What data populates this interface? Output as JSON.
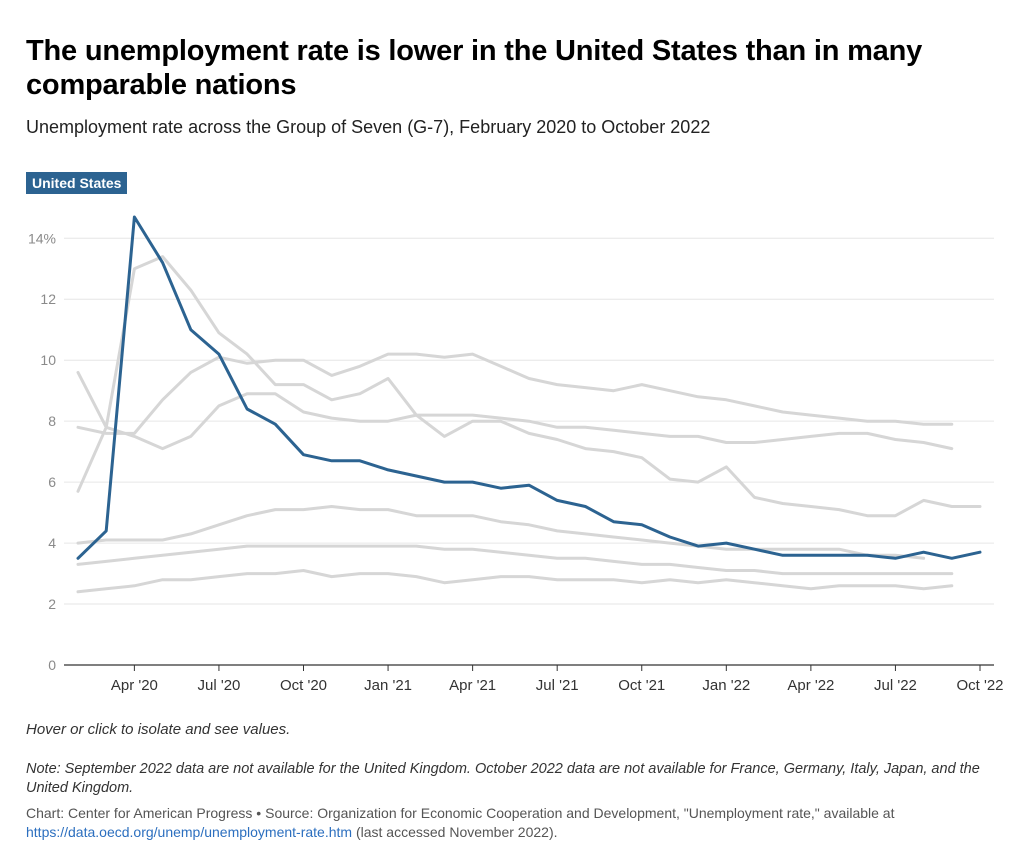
{
  "title": "The unemployment rate is lower in the United States than in many comparable nations",
  "subtitle": "Unemployment rate across the Group of Seven (G-7), February 2020 to October 2022",
  "highlight_label": "United States",
  "hint": "Hover or click to isolate and see values.",
  "note": "Note: September 2022 data are not available for the United Kingdom. October 2022 data are not available for France, Germany, Italy, Japan, and the United Kingdom.",
  "source": {
    "prefix": "Chart: Center for American Progress • Source: Organization for Economic Cooperation and Development, \"Unemployment rate,\" available at",
    "link": "https://data.oecd.org/unemp/unemployment-rate.htm",
    "suffix": "(last accessed November 2022)."
  },
  "colors": {
    "highlight": "#2c6391",
    "other": "#d6d6d6",
    "grid": "#e6e6e6",
    "axis": "#333333"
  },
  "chart_data": {
    "type": "line",
    "x": [
      "Feb 2020",
      "Mar 2020",
      "Apr 2020",
      "May 2020",
      "Jun 2020",
      "Jul 2020",
      "Aug 2020",
      "Sep 2020",
      "Oct 2020",
      "Nov 2020",
      "Dec 2020",
      "Jan 2021",
      "Feb 2021",
      "Mar 2021",
      "Apr 2021",
      "May 2021",
      "Jun 2021",
      "Jul 2021",
      "Aug 2021",
      "Sep 2021",
      "Oct 2021",
      "Nov 2021",
      "Dec 2021",
      "Jan 2022",
      "Feb 2022",
      "Mar 2022",
      "Apr 2022",
      "May 2022",
      "Jun 2022",
      "Jul 2022",
      "Aug 2022",
      "Sep 2022",
      "Oct 2022"
    ],
    "x_tick_labels": [
      {
        "index": 2,
        "label": "Apr '20"
      },
      {
        "index": 5,
        "label": "Jul '20"
      },
      {
        "index": 8,
        "label": "Oct '20"
      },
      {
        "index": 11,
        "label": "Jan '21"
      },
      {
        "index": 14,
        "label": "Apr '21"
      },
      {
        "index": 17,
        "label": "Jul '21"
      },
      {
        "index": 20,
        "label": "Oct '21"
      },
      {
        "index": 23,
        "label": "Jan '22"
      },
      {
        "index": 26,
        "label": "Apr '22"
      },
      {
        "index": 29,
        "label": "Jul '22"
      },
      {
        "index": 32,
        "label": "Oct '22"
      }
    ],
    "y_ticks": [
      0,
      2,
      4,
      6,
      8,
      10,
      12,
      14
    ],
    "y_tick_labels": [
      "0",
      "2",
      "4",
      "6",
      "8",
      "10",
      "12",
      "14%"
    ],
    "ylim": [
      0,
      14.6
    ],
    "highlight_series": 0,
    "series": [
      {
        "name": "United States",
        "values": [
          3.5,
          4.4,
          14.7,
          13.2,
          11.0,
          10.2,
          8.4,
          7.9,
          6.9,
          6.7,
          6.7,
          6.4,
          6.2,
          6.0,
          6.0,
          5.8,
          5.9,
          5.4,
          5.2,
          4.7,
          4.6,
          4.2,
          3.9,
          4.0,
          3.8,
          3.6,
          3.6,
          3.6,
          3.6,
          3.5,
          3.7,
          3.5,
          3.7
        ]
      },
      {
        "values": [
          5.7,
          7.8,
          13.0,
          13.4,
          12.3,
          10.9,
          10.2,
          9.2,
          9.2,
          8.7,
          8.9,
          9.4,
          8.2,
          7.5,
          8.0,
          8.0,
          7.6,
          7.4,
          7.1,
          7.0,
          6.8,
          6.1,
          6.0,
          6.5,
          5.5,
          5.3,
          5.2,
          5.1,
          4.9,
          4.9,
          5.4,
          5.2,
          5.2
        ]
      },
      {
        "values": [
          7.8,
          7.6,
          7.6,
          8.7,
          9.6,
          10.1,
          9.9,
          10.0,
          10.0,
          9.5,
          9.8,
          10.2,
          10.2,
          10.1,
          10.2,
          9.8,
          9.4,
          9.2,
          9.1,
          9.0,
          9.2,
          9.0,
          8.8,
          8.7,
          8.5,
          8.3,
          8.2,
          8.1,
          8.0,
          8.0,
          7.9,
          7.9,
          null
        ]
      },
      {
        "values": [
          9.6,
          7.8,
          7.5,
          7.1,
          7.5,
          8.5,
          8.9,
          8.9,
          8.3,
          8.1,
          8.0,
          8.0,
          8.2,
          8.2,
          8.2,
          8.1,
          8.0,
          7.8,
          7.8,
          7.7,
          7.6,
          7.5,
          7.5,
          7.3,
          7.3,
          7.4,
          7.5,
          7.6,
          7.6,
          7.4,
          7.3,
          7.1,
          null
        ]
      },
      {
        "values": [
          4.0,
          4.1,
          4.1,
          4.1,
          4.3,
          4.6,
          4.9,
          5.1,
          5.1,
          5.2,
          5.1,
          5.1,
          4.9,
          4.9,
          4.9,
          4.7,
          4.6,
          4.4,
          4.3,
          4.2,
          4.1,
          4.0,
          3.9,
          3.8,
          3.8,
          3.8,
          3.8,
          3.8,
          3.6,
          3.6,
          3.5,
          null,
          null
        ]
      },
      {
        "values": [
          3.3,
          3.4,
          3.5,
          3.6,
          3.7,
          3.8,
          3.9,
          3.9,
          3.9,
          3.9,
          3.9,
          3.9,
          3.9,
          3.8,
          3.8,
          3.7,
          3.6,
          3.5,
          3.5,
          3.4,
          3.3,
          3.3,
          3.2,
          3.1,
          3.1,
          3.0,
          3.0,
          3.0,
          3.0,
          3.0,
          3.0,
          3.0,
          null
        ]
      },
      {
        "values": [
          2.4,
          2.5,
          2.6,
          2.8,
          2.8,
          2.9,
          3.0,
          3.0,
          3.1,
          2.9,
          3.0,
          3.0,
          2.9,
          2.7,
          2.8,
          2.9,
          2.9,
          2.8,
          2.8,
          2.8,
          2.7,
          2.8,
          2.7,
          2.8,
          2.7,
          2.6,
          2.5,
          2.6,
          2.6,
          2.6,
          2.5,
          2.6,
          null
        ]
      }
    ]
  }
}
